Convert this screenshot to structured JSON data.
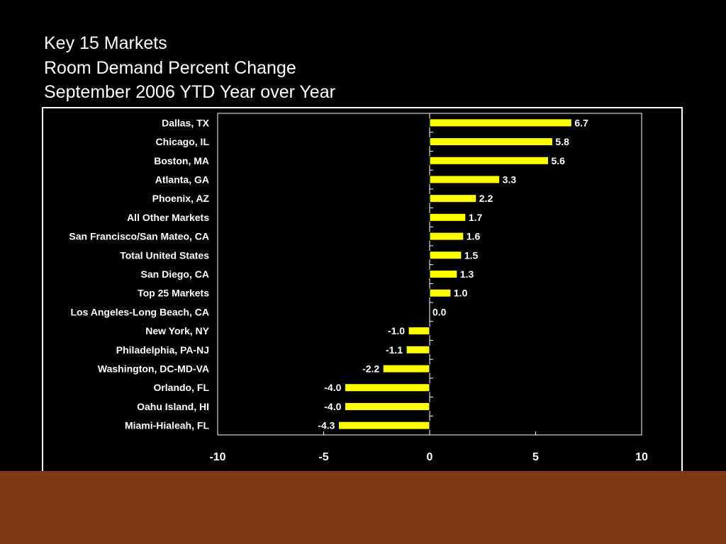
{
  "slide": {
    "title_lines": [
      "Key 15 Markets",
      "Room Demand Percent Change",
      "September 2006 YTD Year over Year"
    ]
  },
  "colors": {
    "background": "#000000",
    "bar_fill": "#ffff00",
    "bar_stroke": "#000000",
    "text": "#ffffff",
    "footer": "#7f3915"
  },
  "chart_data": {
    "type": "bar",
    "orientation": "horizontal",
    "title": "",
    "xlabel": "",
    "ylabel": "",
    "xlim": [
      -10,
      10
    ],
    "x_ticks": [
      -10,
      -5,
      0,
      5,
      10
    ],
    "x_tick_labels": [
      "-10",
      "-5",
      "0",
      "5",
      "10"
    ],
    "grid": false,
    "legend": "none",
    "categories": [
      "Dallas, TX",
      "Chicago, IL",
      "Boston, MA",
      "Atlanta, GA",
      "Phoenix, AZ",
      "All Other Markets",
      "San Francisco/San Mateo, CA",
      "Total United States",
      "San Diego, CA",
      "Top 25 Markets",
      "Los Angeles-Long Beach, CA",
      "New York, NY",
      "Philadelphia, PA-NJ",
      "Washington, DC-MD-VA",
      "Orlando, FL",
      "Oahu Island, HI",
      "Miami-Hialeah, FL"
    ],
    "values": [
      6.7,
      5.8,
      5.6,
      3.3,
      2.2,
      1.7,
      1.6,
      1.5,
      1.3,
      1.0,
      0.0,
      -1.0,
      -1.1,
      -2.2,
      -4.0,
      -4.0,
      -4.3
    ],
    "value_labels": [
      "6.7",
      "5.8",
      "5.6",
      "3.3",
      "2.2",
      "1.7",
      "1.6",
      "1.5",
      "1.3",
      "1.0",
      "0.0",
      "-1.0",
      "-1.1",
      "-2.2",
      "-4.0",
      "-4.0",
      "-4.3"
    ]
  }
}
